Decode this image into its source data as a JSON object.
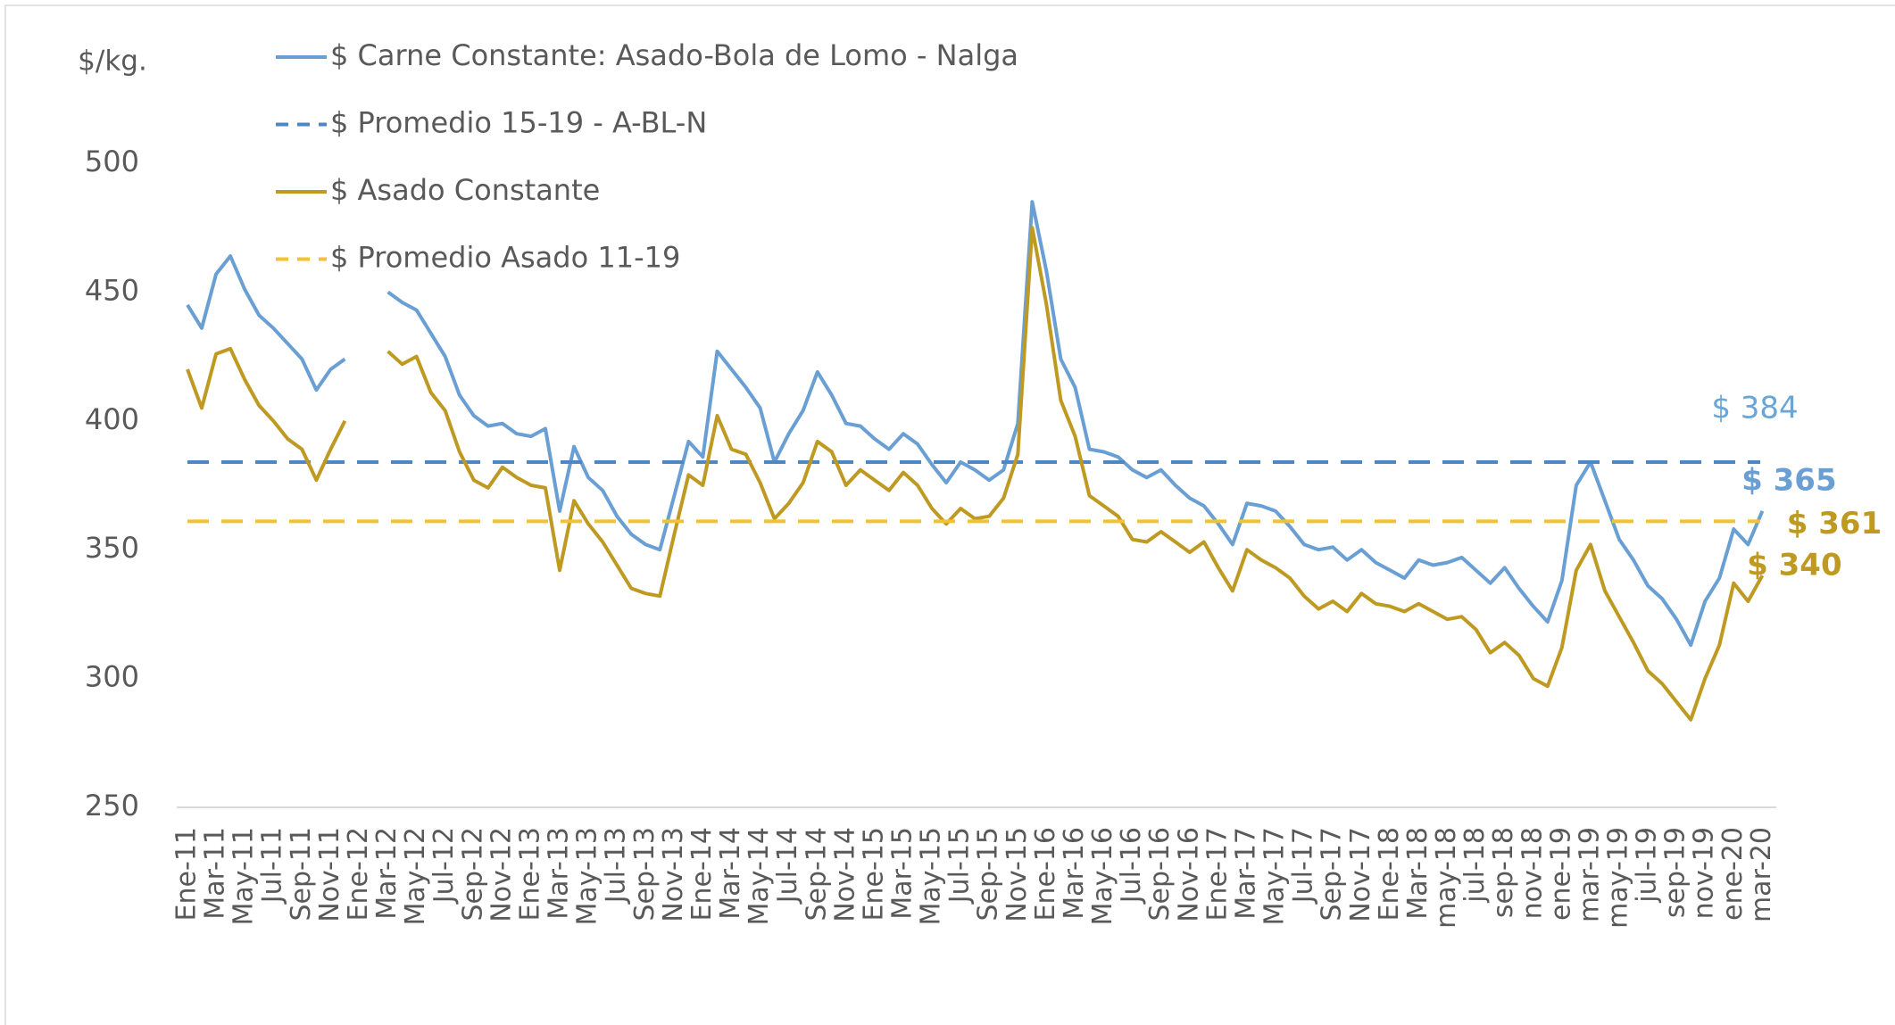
{
  "chart_data": {
    "type": "line",
    "y_label": "$/kg.",
    "ylim": [
      250,
      500
    ],
    "yticks": [
      250,
      300,
      350,
      400,
      450,
      500
    ],
    "grid": false,
    "legend": "top-left",
    "categories": [
      "Ene-11",
      null,
      "Mar-11",
      null,
      "May-11",
      null,
      "Jul-11",
      null,
      "Sep-11",
      null,
      "Nov-11",
      null,
      "Ene-12",
      null,
      "Mar-12",
      null,
      "May-12",
      null,
      "Jul-12",
      null,
      "Sep-12",
      null,
      "Nov-12",
      null,
      "Ene-13",
      null,
      "Mar-13",
      null,
      "May-13",
      null,
      "Jul-13",
      null,
      "Sep-13",
      null,
      "Nov-13",
      null,
      "Ene-14",
      null,
      "Mar-14",
      null,
      "May-14",
      null,
      "Jul-14",
      null,
      "Sep-14",
      null,
      "Nov-14",
      null,
      "Ene-15",
      null,
      "Mar-15",
      null,
      "May-15",
      null,
      "Jul-15",
      null,
      "Sep-15",
      null,
      "Nov-15",
      null,
      "Ene-16",
      null,
      "Mar-16",
      null,
      "May-16",
      null,
      "Jul-16",
      null,
      "Sep-16",
      null,
      "Nov-16",
      null,
      "Ene-17",
      null,
      "Mar-17",
      null,
      "May-17",
      null,
      "Jul-17",
      null,
      "Sep-17",
      null,
      "Nov-17",
      null,
      "Ene-18",
      null,
      "Mar-18",
      null,
      "may-18",
      null,
      "jul-18",
      null,
      "sep-18",
      null,
      "nov-18",
      null,
      "ene-19",
      null,
      "mar-19",
      null,
      "may-19",
      null,
      "jul-19",
      null,
      "sep-19",
      null,
      "nov-19",
      null,
      "ene-20",
      null,
      "mar-20"
    ],
    "series": [
      {
        "name": "$ Carne Constante: Asado-Bola de Lomo - Nalga",
        "color": "#6a9fd3",
        "values": [
          445,
          436,
          457,
          464,
          451,
          441,
          436,
          430,
          424,
          412,
          420,
          424,
          null,
          null,
          450,
          446,
          443,
          434,
          425,
          410,
          402,
          398,
          399,
          395,
          394,
          397,
          365,
          390,
          378,
          373,
          363,
          356,
          352,
          350,
          371,
          392,
          386,
          427,
          420,
          413,
          405,
          384,
          395,
          404,
          419,
          410,
          399,
          398,
          393,
          389,
          395,
          391,
          383,
          376,
          384,
          381,
          377,
          381,
          399,
          485,
          458,
          424,
          413,
          389,
          388,
          386,
          381,
          378,
          381,
          375,
          370,
          367,
          360,
          352,
          368,
          367,
          365,
          359,
          352,
          350,
          351,
          346,
          350,
          345,
          342,
          339,
          346,
          344,
          345,
          347,
          342,
          337,
          343,
          335,
          328,
          322,
          338,
          375,
          384,
          369,
          354,
          346,
          336,
          331,
          323,
          313,
          330,
          339,
          358,
          352,
          365
        ],
        "value_labels": {
          "110": "$ 365"
        }
      },
      {
        "name": "$ Promedio 15-19 - A-BL-N",
        "color": "#4f86c4",
        "dash": true,
        "value": 384,
        "value_label": "$ 384"
      },
      {
        "name": "$ Asado Constante",
        "color": "#bf9a22",
        "values": [
          420,
          405,
          426,
          428,
          416,
          406,
          400,
          393,
          389,
          377,
          389,
          400,
          null,
          null,
          427,
          422,
          425,
          411,
          404,
          388,
          377,
          374,
          382,
          378,
          375,
          374,
          342,
          369,
          360,
          353,
          344,
          335,
          333,
          332,
          356,
          379,
          375,
          402,
          389,
          387,
          376,
          362,
          368,
          376,
          392,
          388,
          375,
          381,
          377,
          373,
          380,
          375,
          366,
          360,
          366,
          362,
          363,
          370,
          387,
          475,
          445,
          408,
          394,
          371,
          367,
          363,
          354,
          353,
          357,
          353,
          349,
          353,
          343,
          334,
          350,
          346,
          343,
          339,
          332,
          327,
          330,
          326,
          333,
          329,
          328,
          326,
          329,
          326,
          323,
          324,
          319,
          310,
          314,
          309,
          300,
          297,
          312,
          342,
          352,
          334,
          324,
          314,
          303,
          298,
          291,
          284,
          300,
          313,
          337,
          330,
          340
        ],
        "value_labels": {
          "110": "$ 340"
        }
      },
      {
        "name": "$ Promedio Asado 11-19",
        "color": "#f2c230",
        "dash": true,
        "value": 361,
        "value_label": "$ 361"
      }
    ]
  }
}
